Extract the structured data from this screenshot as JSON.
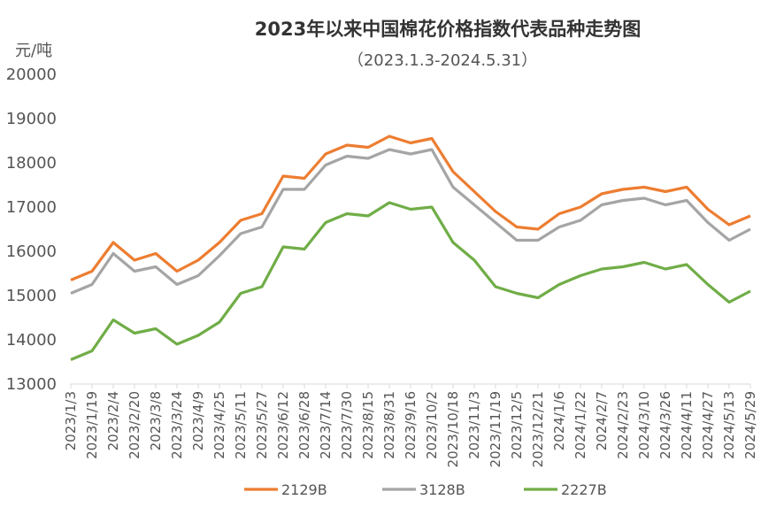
{
  "chart_data": {
    "type": "line",
    "title": "2023年以来中国棉花价格指数代表品种走势图",
    "subtitle": "（2023.1.3-2024.5.31）",
    "ylabel": "元/吨",
    "ylim": [
      13000,
      20000
    ],
    "yticks": [
      "20000",
      "19000",
      "18000",
      "17000",
      "16000",
      "15000",
      "14000",
      "13000"
    ],
    "ytick_values": [
      20000,
      19000,
      18000,
      17000,
      16000,
      15000,
      14000,
      13000
    ],
    "grid": false,
    "legend_position": "bottom",
    "x_tick_labels": [
      "2023/1/3",
      "2023/1/19",
      "2023/2/4",
      "2023/2/20",
      "2023/3/8",
      "2023/3/24",
      "2023/4/9",
      "2023/4/25",
      "2023/5/11",
      "2023/5/27",
      "2023/6/12",
      "2023/6/28",
      "2023/7/14",
      "2023/7/30",
      "2023/8/15",
      "2023/8/31",
      "2023/9/16",
      "2023/10/2",
      "2023/10/18",
      "2023/11/3",
      "2023/11/19",
      "2023/12/5",
      "2023/12/21",
      "2024/1/6",
      "2024/1/22",
      "2024/2/7",
      "2024/2/23",
      "2024/3/10",
      "2024/3/26",
      "2024/4/11",
      "2024/4/27",
      "2024/5/13",
      "2024/5/29"
    ],
    "x": [
      "2023/1/3",
      "2023/1/19",
      "2023/2/4",
      "2023/2/20",
      "2023/3/8",
      "2023/3/24",
      "2023/4/9",
      "2023/4/25",
      "2023/5/11",
      "2023/5/27",
      "2023/6/12",
      "2023/6/28",
      "2023/7/14",
      "2023/7/30",
      "2023/8/15",
      "2023/8/31",
      "2023/9/16",
      "2023/10/2",
      "2023/10/18",
      "2023/11/3",
      "2023/11/19",
      "2023/12/5",
      "2023/12/21",
      "2024/1/6",
      "2024/1/22",
      "2024/2/7",
      "2024/2/23",
      "2024/3/10",
      "2024/3/26",
      "2024/4/11",
      "2024/4/27",
      "2024/5/13",
      "2024/5/29"
    ],
    "series": [
      {
        "name": "2129B",
        "color": "#ED7D31",
        "values": [
          15350,
          15550,
          16200,
          15800,
          15950,
          15550,
          15800,
          16200,
          16700,
          16850,
          17700,
          17650,
          18200,
          18400,
          18350,
          18600,
          18450,
          18550,
          17800,
          17350,
          16900,
          16550,
          16500,
          16850,
          17000,
          17300,
          17400,
          17450,
          17350,
          17450,
          16950,
          16600,
          16800
        ]
      },
      {
        "name": "3128B",
        "color": "#A5A5A5",
        "values": [
          15050,
          15250,
          15950,
          15550,
          15650,
          15250,
          15450,
          15900,
          16400,
          16550,
          17400,
          17400,
          17950,
          18150,
          18100,
          18300,
          18200,
          18300,
          17450,
          17050,
          16650,
          16250,
          16250,
          16550,
          16700,
          17050,
          17150,
          17200,
          17050,
          17150,
          16650,
          16250,
          16500
        ]
      },
      {
        "name": "2227B",
        "color": "#70AD47",
        "values": [
          13550,
          13750,
          14450,
          14150,
          14250,
          13900,
          14100,
          14400,
          15050,
          15200,
          16100,
          16050,
          16650,
          16850,
          16800,
          17100,
          16950,
          17000,
          16200,
          15800,
          15200,
          15050,
          14950,
          15250,
          15450,
          15600,
          15650,
          15750,
          15600,
          15700,
          15250,
          14850,
          15100
        ]
      }
    ]
  }
}
